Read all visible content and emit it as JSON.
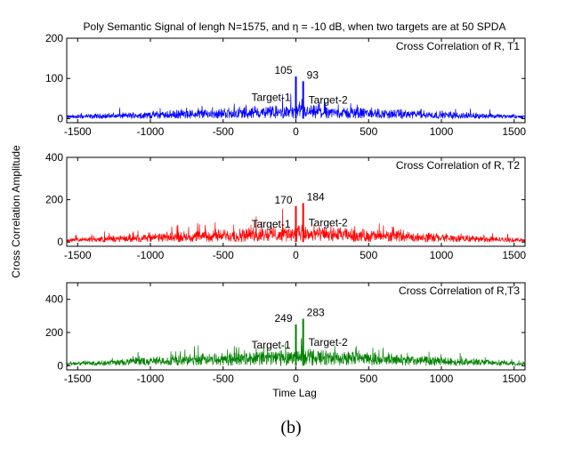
{
  "figure": {
    "title": "Poly Semantic Signal of lengh N=1575, and η = -10 dB, when two targets are at 50 SPDA",
    "ylabel": "Cross Correlation Amplitude",
    "xlabel": "Time Lag",
    "caption": "(b)"
  },
  "chart_data": [
    {
      "type": "line",
      "label": "Cross Correlation of R, T1",
      "color": "#0000ff",
      "xlim": [
        -1575,
        1575
      ],
      "ylim": [
        -10,
        200
      ],
      "xticks": [
        -1500,
        -1000,
        -500,
        0,
        500,
        1000,
        1500
      ],
      "yticks": [
        0,
        100,
        200
      ],
      "noise_envelope": {
        "center": 30,
        "edge": 8
      },
      "peaks": [
        {
          "x": 0,
          "y": 105,
          "value_label": "105",
          "target_label": "Target-1"
        },
        {
          "x": 50,
          "y": 93,
          "value_label": "93",
          "target_label": "Target-2"
        }
      ]
    },
    {
      "type": "line",
      "label": "Cross Correlation of R, T2",
      "color": "#ff0000",
      "xlim": [
        -1575,
        1575
      ],
      "ylim": [
        -20,
        400
      ],
      "xticks": [
        -1500,
        -1000,
        -500,
        0,
        500,
        1000,
        1500
      ],
      "yticks": [
        0,
        200,
        400
      ],
      "noise_envelope": {
        "center": 70,
        "edge": 15
      },
      "peaks": [
        {
          "x": 0,
          "y": 170,
          "value_label": "170",
          "target_label": "Target-1"
        },
        {
          "x": 50,
          "y": 184,
          "value_label": "184",
          "target_label": "Target-2"
        }
      ]
    },
    {
      "type": "line",
      "label": "Cross Correlation of R,T3",
      "color": "#008000",
      "xlim": [
        -1575,
        1575
      ],
      "ylim": [
        -25,
        500
      ],
      "xticks": [
        -1500,
        -1000,
        -500,
        0,
        500,
        1000,
        1500
      ],
      "yticks": [
        0,
        200,
        400
      ],
      "noise_envelope": {
        "center": 95,
        "edge": 20
      },
      "peaks": [
        {
          "x": 0,
          "y": 249,
          "value_label": "249",
          "target_label": "Target-1"
        },
        {
          "x": 50,
          "y": 283,
          "value_label": "283",
          "target_label": "Target-2"
        }
      ]
    }
  ]
}
